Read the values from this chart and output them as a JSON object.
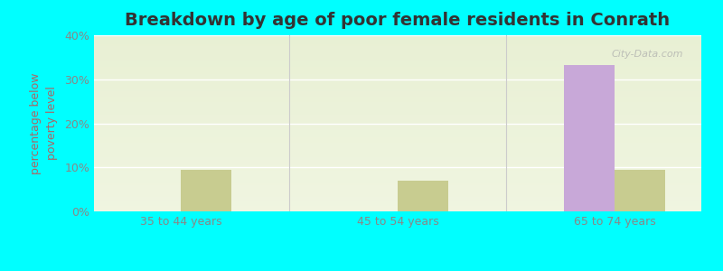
{
  "title": "Breakdown by age of poor female residents in Conrath",
  "categories": [
    "35 to 44 years",
    "45 to 54 years",
    "65 to 74 years"
  ],
  "conrath_values": [
    0,
    0,
    33.3
  ],
  "wisconsin_values": [
    9.5,
    7.0,
    9.5
  ],
  "conrath_color": "#c8a8d8",
  "wisconsin_color": "#c8cc90",
  "ylabel": "percentage below\npoverty level",
  "ylim": [
    0,
    40
  ],
  "yticks": [
    0,
    10,
    20,
    30,
    40
  ],
  "ytick_labels": [
    "0%",
    "10%",
    "20%",
    "30%",
    "40%"
  ],
  "outer_background": "#00ffff",
  "bar_width": 0.35,
  "title_fontsize": 14,
  "axis_label_fontsize": 9,
  "tick_fontsize": 9,
  "legend_fontsize": 10,
  "watermark": "City-Data.com"
}
